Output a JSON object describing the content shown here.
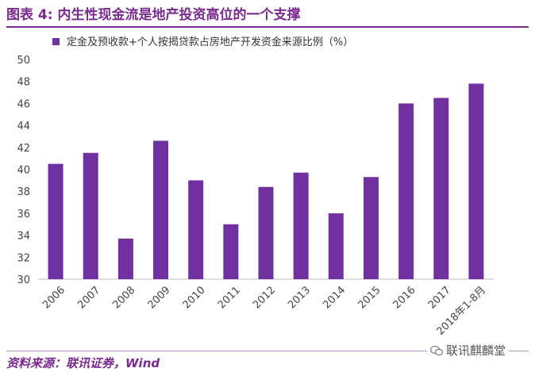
{
  "header": {
    "title": "图表 4:  内生性现金流是地产投资高位的一个支撑"
  },
  "footer": {
    "source": "资料来源：联讯证券，Wind",
    "watermark": "联讯麒麟堂"
  },
  "colors": {
    "accent": "#7a2a8f",
    "bar": "#7030a0"
  },
  "chart_data": {
    "type": "bar",
    "title": "",
    "xlabel": "",
    "ylabel": "",
    "legend": "top-left",
    "ylim": [
      30,
      50
    ],
    "yticks": [
      "30",
      "32",
      "34",
      "36",
      "38",
      "40",
      "42",
      "44",
      "46",
      "48",
      "50"
    ],
    "categories": [
      "2006",
      "2007",
      "2008",
      "2009",
      "2010",
      "2011",
      "2012",
      "2013",
      "2014",
      "2015",
      "2016",
      "2017",
      "2018年1-8月"
    ],
    "series": [
      {
        "name": "定金及预收款+个人按揭贷款占房地产开发资金来源比例（%）",
        "values": [
          40.5,
          41.5,
          33.7,
          42.6,
          39.0,
          35.0,
          38.4,
          39.7,
          36.0,
          39.3,
          46.0,
          46.5,
          47.8
        ]
      }
    ]
  }
}
